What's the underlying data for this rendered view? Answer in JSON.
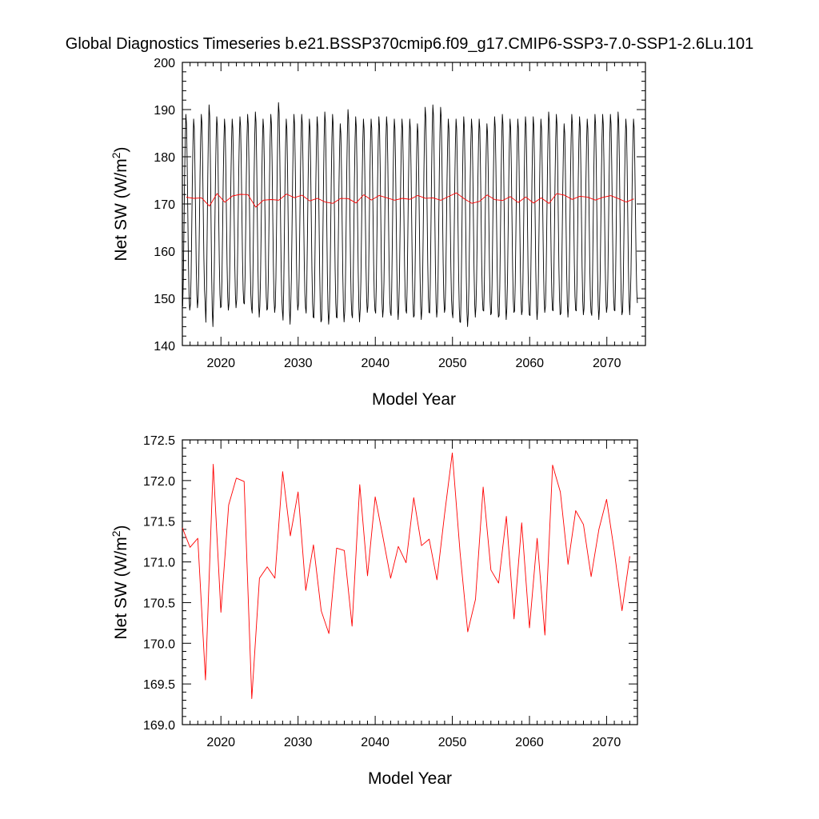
{
  "chart_data": [
    {
      "type": "line",
      "title": "Global Diagnostics Timeseries b.e21.BSSP370cmip6.f09_g17.CMIP6-SSP3-7.0-SSP1-2.6Lu.101",
      "xlabel": "Model Year",
      "ylabel": "Net SW (W/m2)",
      "xlim": [
        2015,
        2075
      ],
      "ylim": [
        140,
        200
      ],
      "xticks": [
        "2020",
        "2030",
        "2040",
        "2050",
        "2060",
        "2070"
      ],
      "yticks": [
        "140",
        "150",
        "160",
        "170",
        "180",
        "190",
        "200"
      ],
      "series": [
        {
          "style": "monthly",
          "color": "#000000",
          "annual_max": [
            189.0,
            188.0,
            189.0,
            191.0,
            188.5,
            188.0,
            188.0,
            188.5,
            189.0,
            189.5,
            188.0,
            189.0,
            191.5,
            188.0,
            189.0,
            189.0,
            188.0,
            188.5,
            189.5,
            189.0,
            187.0,
            190.0,
            188.5,
            188.0,
            188.0,
            188.5,
            188.5,
            188.0,
            188.0,
            188.0,
            187.0,
            190.5,
            191.0,
            190.5,
            188.0,
            188.0,
            188.5,
            188.0,
            188.0,
            187.0,
            188.5,
            189.0,
            188.0,
            188.0,
            188.5,
            188.5,
            188.0,
            189.5,
            189.0,
            187.0,
            189.0,
            188.5,
            188.0,
            189.0,
            189.0,
            189.0,
            189.5,
            188.0,
            188.0
          ],
          "annual_min": [
            147.5,
            148.0,
            149.0,
            144.0,
            148.0,
            147.5,
            148.0,
            149.0,
            148.0,
            146.0,
            147.5,
            147.0,
            147.5,
            144.5,
            147.5,
            148.0,
            146.0,
            145.0,
            144.5,
            146.0,
            145.0,
            146.5,
            145.0,
            147.0,
            147.5,
            146.0,
            147.0,
            145.5,
            147.5,
            146.0,
            145.5,
            147.0,
            146.0,
            147.0,
            147.0,
            145.0,
            144.0,
            146.0,
            147.5,
            146.5,
            146.0,
            145.5,
            147.0,
            146.5,
            146.5,
            145.5,
            147.0,
            147.5,
            146.5,
            146.0,
            147.5,
            146.5,
            147.0,
            145.5,
            147.0,
            147.5,
            146.5,
            146.5,
            149.0
          ]
        },
        {
          "style": "annual mean",
          "color": "#ff0000",
          "x": [
            2015.5,
            2016.5,
            2017.5,
            2018.5,
            2019.5,
            2020.5,
            2021.5,
            2022.5,
            2023.5,
            2024.5,
            2025.5,
            2026.5,
            2027.5,
            2028.5,
            2029.5,
            2030.5,
            2031.5,
            2032.5,
            2033.5,
            2034.5,
            2035.5,
            2036.5,
            2037.5,
            2038.5,
            2039.5,
            2040.5,
            2041.5,
            2042.5,
            2043.5,
            2044.5,
            2045.5,
            2046.5,
            2047.5,
            2048.5,
            2049.5,
            2050.5,
            2051.5,
            2052.5,
            2053.5,
            2054.5,
            2055.5,
            2056.5,
            2057.5,
            2058.5,
            2059.5,
            2060.5,
            2061.5,
            2062.5,
            2063.5,
            2064.5,
            2065.5,
            2066.5,
            2067.5,
            2068.5,
            2069.5,
            2070.5,
            2071.5,
            2072.5,
            2073.5
          ],
          "y": [
            171.42,
            171.18,
            171.29,
            169.55,
            172.2,
            170.38,
            171.7,
            172.03,
            171.99,
            169.32,
            170.8,
            170.94,
            170.8,
            172.11,
            171.32,
            171.86,
            170.65,
            171.21,
            170.4,
            170.12,
            171.17,
            171.14,
            170.21,
            171.95,
            170.83,
            171.8,
            171.31,
            170.8,
            171.19,
            170.99,
            171.79,
            171.2,
            171.28,
            170.78,
            171.59,
            172.34,
            171.12,
            170.14,
            170.54,
            171.92,
            170.9,
            170.74,
            171.56,
            170.3,
            171.48,
            170.19,
            171.29,
            170.1,
            172.19,
            171.86,
            170.97,
            171.63,
            171.46,
            170.82,
            171.4,
            171.77,
            171.13,
            170.4,
            171.07
          ]
        }
      ]
    },
    {
      "type": "line",
      "title": "",
      "xlabel": "Model Year",
      "ylabel": "Net SW (W/m2)",
      "xlim": [
        2015,
        2074
      ],
      "ylim": [
        169.0,
        172.5
      ],
      "xticks": [
        "2020",
        "2030",
        "2040",
        "2050",
        "2060",
        "2070"
      ],
      "yticks": [
        "169.0",
        "169.5",
        "170.0",
        "170.5",
        "171.0",
        "171.5",
        "172.0",
        "172.5"
      ],
      "series": [
        {
          "style": "annual mean",
          "color": "#ff0000",
          "x": [
            2015.0,
            2016.0,
            2017.0,
            2018.0,
            2019.0,
            2020.0,
            2021.0,
            2022.0,
            2023.0,
            2024.0,
            2025.0,
            2026.0,
            2027.0,
            2028.0,
            2029.0,
            2030.0,
            2031.0,
            2032.0,
            2033.0,
            2034.0,
            2035.0,
            2036.0,
            2037.0,
            2038.0,
            2039.0,
            2040.0,
            2041.0,
            2042.0,
            2043.0,
            2044.0,
            2045.0,
            2046.0,
            2047.0,
            2048.0,
            2049.0,
            2050.0,
            2051.0,
            2052.0,
            2053.0,
            2054.0,
            2055.0,
            2056.0,
            2057.0,
            2058.0,
            2059.0,
            2060.0,
            2061.0,
            2062.0,
            2063.0,
            2064.0,
            2065.0,
            2066.0,
            2067.0,
            2068.0,
            2069.0,
            2070.0,
            2071.0,
            2072.0,
            2073.0
          ],
          "y": [
            171.42,
            171.18,
            171.29,
            169.55,
            172.2,
            170.38,
            171.7,
            172.03,
            171.99,
            169.32,
            170.8,
            170.94,
            170.8,
            172.11,
            171.32,
            171.86,
            170.65,
            171.21,
            170.4,
            170.12,
            171.17,
            171.14,
            170.21,
            171.95,
            170.83,
            171.8,
            171.31,
            170.8,
            171.19,
            170.99,
            171.79,
            171.2,
            171.28,
            170.78,
            171.59,
            172.34,
            171.12,
            170.14,
            170.54,
            171.92,
            170.9,
            170.74,
            171.56,
            170.3,
            171.48,
            170.19,
            171.29,
            170.1,
            172.19,
            171.86,
            170.97,
            171.63,
            171.46,
            170.82,
            171.4,
            171.77,
            171.13,
            170.4,
            171.07
          ]
        }
      ]
    }
  ]
}
